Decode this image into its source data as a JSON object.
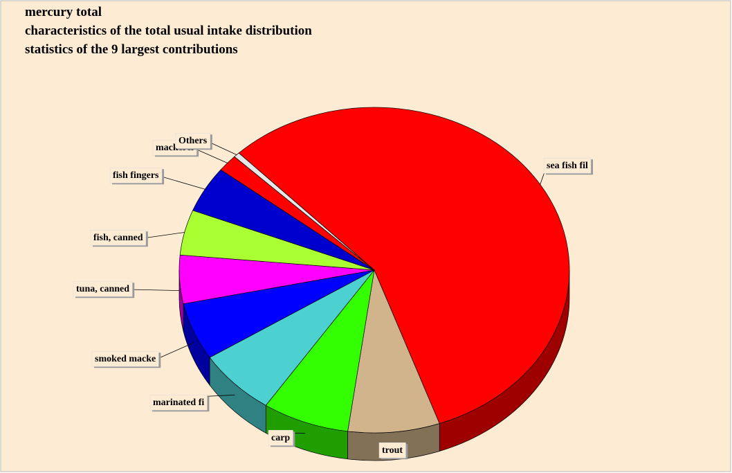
{
  "chart_data": {
    "type": "pie",
    "title": "mercury total",
    "subtitle": [
      "characteristics of the total usual intake distribution",
      "statistics of the 9 largest contributions"
    ],
    "categories": [
      "sea fish fil",
      "trout",
      "carp",
      "marinated fi",
      "smoked macke",
      "tuna, canned",
      "fish, canned",
      "fish fingers",
      "mackerel",
      "Others"
    ],
    "values": [
      56.8,
      7.6,
      7.2,
      6.6,
      5.7,
      4.8,
      4.5,
      4.6,
      1.7,
      0.5
    ],
    "colors": [
      "#ff0000",
      "#d2b48c",
      "#33ff00",
      "#4dd0d0",
      "#0000ff",
      "#ff00ff",
      "#aaff33",
      "#0000cc",
      "#ff0000",
      "#e8e8e8"
    ]
  }
}
